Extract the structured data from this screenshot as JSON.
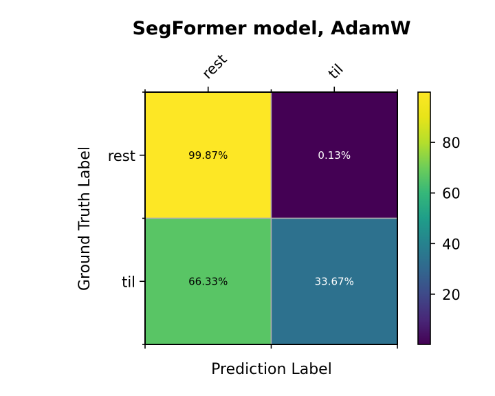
{
  "chart_data": {
    "type": "heatmap",
    "title": "SegFormer model, AdamW",
    "xlabel": "Prediction Label",
    "ylabel": "Ground Truth Label",
    "x_categories": [
      "rest",
      "til"
    ],
    "y_categories": [
      "rest",
      "til"
    ],
    "values": [
      [
        99.87,
        0.13
      ],
      [
        66.33,
        33.67
      ]
    ],
    "cell_labels": [
      [
        "99.87%",
        "0.13%"
      ],
      [
        "66.33%",
        "33.67%"
      ]
    ],
    "colormap": "viridis",
    "colorbar": {
      "range": [
        0.13,
        99.87
      ],
      "ticks": [
        20,
        40,
        60,
        80
      ],
      "tick_labels": [
        "20",
        "40",
        "60",
        "80"
      ]
    },
    "x_tick_position": "top",
    "grid": true
  }
}
